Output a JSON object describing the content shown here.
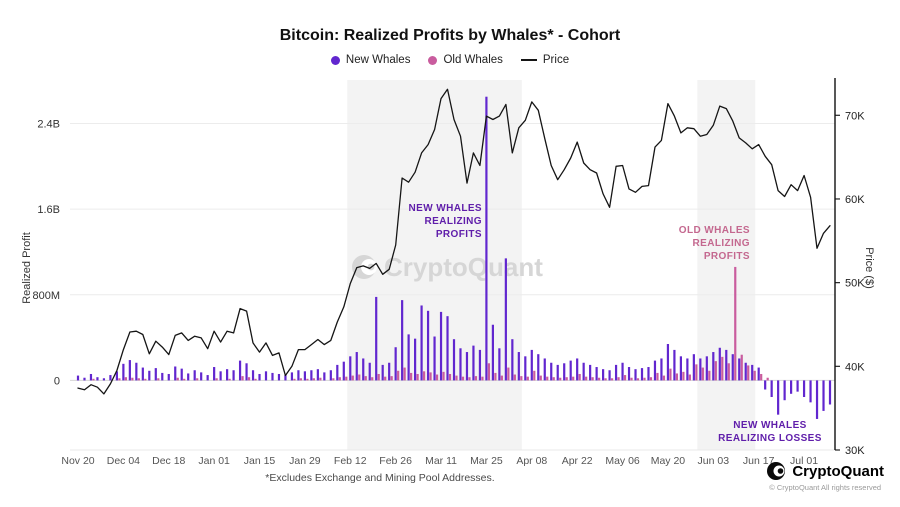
{
  "footer": {
    "brand": "CryptoQuant",
    "copyright": "© CryptoQuant All rights reserved"
  },
  "chart_data": {
    "type": "bar+line",
    "title": "Bitcoin: Realized Profits by Whales* - Cohort",
    "footnote": "*Excludes Exchange and Mining Pool Addresses.",
    "watermark": "CryptoQuant",
    "legend": [
      {
        "label": "New Whales",
        "color": "#6126cf",
        "marker": "dot"
      },
      {
        "label": "Old Whales",
        "color": "#c95c9e",
        "marker": "dot"
      },
      {
        "label": "Price",
        "color": "#151515",
        "marker": "line"
      }
    ],
    "ylabel_left": "Realized Profit",
    "ylabel_right": "Price ($)",
    "ylim_left_M": [
      -650,
      2750
    ],
    "ylim_right_k": [
      30,
      73.5
    ],
    "yticks_left": [
      {
        "value_M": 0,
        "label": "0"
      },
      {
        "value_M": 800,
        "label": "800M"
      },
      {
        "value_M": 1600,
        "label": "1.6B"
      },
      {
        "value_M": 2400,
        "label": "2.4B"
      }
    ],
    "yticks_right": [
      {
        "value_k": 30,
        "label": "30K"
      },
      {
        "value_k": 40,
        "label": "40K"
      },
      {
        "value_k": 50,
        "label": "50K"
      },
      {
        "value_k": 60,
        "label": "60K"
      },
      {
        "value_k": 70,
        "label": "70K"
      }
    ],
    "x_start_date": "Nov 20",
    "x_step_days": 2,
    "xticks": [
      {
        "label": "Nov 20",
        "index": 0
      },
      {
        "label": "Dec 04",
        "index": 7
      },
      {
        "label": "Dec 18",
        "index": 14
      },
      {
        "label": "Jan 01",
        "index": 21
      },
      {
        "label": "Jan 15",
        "index": 28
      },
      {
        "label": "Jan 29",
        "index": 35
      },
      {
        "label": "Feb 12",
        "index": 42
      },
      {
        "label": "Feb 26",
        "index": 49
      },
      {
        "label": "Mar 11",
        "index": 56
      },
      {
        "label": "Mar 25",
        "index": 63
      },
      {
        "label": "Apr 08",
        "index": 70
      },
      {
        "label": "Apr 22",
        "index": 77
      },
      {
        "label": "May 06",
        "index": 84
      },
      {
        "label": "May 20",
        "index": 91
      },
      {
        "label": "Jun 03",
        "index": 98
      },
      {
        "label": "Jun 17",
        "index": 105
      },
      {
        "label": "Jul 01",
        "index": 112
      }
    ],
    "bands_index_ranges": [
      [
        42,
        68
      ],
      [
        96,
        104
      ]
    ],
    "series": {
      "price_usd_k": [
        37.4,
        37.2,
        37.8,
        37.5,
        36.7,
        37.9,
        39.5,
        42.0,
        44.1,
        44.2,
        43.8,
        41.5,
        43.0,
        42.3,
        41.4,
        43.7,
        44.0,
        43.1,
        43.6,
        43.4,
        42.1,
        44.2,
        42.9,
        44.2,
        44.0,
        46.9,
        46.6,
        42.8,
        41.7,
        42.8,
        41.3,
        41.6,
        38.9,
        40.0,
        42.0,
        42.0,
        42.6,
        43.2,
        42.6,
        43.1,
        45.3,
        47.1,
        49.9,
        51.8,
        52.0,
        51.7,
        52.3,
        51.0,
        51.6,
        54.5,
        62.5,
        62.0,
        63.2,
        65.5,
        66.5,
        68.3,
        72.0,
        73.1,
        69.5,
        67.5,
        61.9,
        65.5,
        64.0,
        69.9,
        69.5,
        69.9,
        71.3,
        65.5,
        68.5,
        69.4,
        71.6,
        70.6,
        67.2,
        64.0,
        62.3,
        63.5,
        64.9,
        66.8,
        64.3,
        63.5,
        63.1,
        60.6,
        59.0,
        63.9,
        64.0,
        61.2,
        60.8,
        61.5,
        61.6,
        66.2,
        67.0,
        71.4,
        69.9,
        67.9,
        68.5,
        68.4,
        67.5,
        67.7,
        68.8,
        71.1,
        70.8,
        69.3,
        67.3,
        66.7,
        66.0,
        66.5,
        65.1,
        64.1,
        61.0,
        60.3,
        61.7,
        61.0,
        62.8,
        60.2,
        54.1,
        55.9,
        56.8
      ],
      "new_whales_realized_profit_usd_M": [
        45,
        25,
        60,
        30,
        20,
        50,
        85,
        155,
        190,
        165,
        120,
        90,
        115,
        70,
        60,
        130,
        110,
        65,
        95,
        75,
        50,
        125,
        85,
        105,
        95,
        185,
        160,
        95,
        60,
        85,
        70,
        60,
        50,
        75,
        95,
        85,
        95,
        105,
        75,
        95,
        145,
        175,
        225,
        265,
        205,
        165,
        780,
        145,
        165,
        310,
        750,
        430,
        390,
        700,
        650,
        410,
        640,
        600,
        385,
        300,
        265,
        325,
        285,
        2650,
        520,
        300,
        1140,
        385,
        265,
        225,
        285,
        245,
        205,
        165,
        145,
        160,
        185,
        205,
        165,
        145,
        125,
        105,
        95,
        145,
        165,
        125,
        105,
        115,
        125,
        185,
        205,
        340,
        285,
        225,
        205,
        245,
        205,
        225,
        265,
        305,
        285,
        245,
        205,
        165,
        145,
        120,
        -85,
        -155,
        -320,
        -185,
        -125,
        -105,
        -155,
        -205,
        -360,
        -285,
        -225
      ],
      "old_whales_realized_profit_usd_M": [
        0,
        0,
        15,
        0,
        0,
        0,
        20,
        30,
        25,
        20,
        15,
        0,
        20,
        0,
        0,
        25,
        15,
        0,
        20,
        0,
        0,
        20,
        0,
        15,
        0,
        40,
        30,
        15,
        0,
        0,
        0,
        0,
        0,
        15,
        20,
        15,
        20,
        25,
        0,
        20,
        30,
        35,
        45,
        55,
        40,
        30,
        60,
        35,
        40,
        90,
        120,
        70,
        60,
        85,
        75,
        55,
        80,
        60,
        45,
        35,
        30,
        40,
        35,
        160,
        70,
        45,
        120,
        55,
        40,
        35,
        90,
        45,
        35,
        30,
        25,
        30,
        35,
        60,
        35,
        30,
        25,
        20,
        20,
        30,
        50,
        25,
        20,
        25,
        30,
        70,
        45,
        110,
        65,
        80,
        55,
        150,
        120,
        90,
        180,
        220,
        160,
        1060,
        240,
        140,
        90,
        60,
        25,
        0,
        0,
        0,
        0,
        0,
        0,
        0,
        0,
        0,
        0
      ]
    },
    "annotations": {
      "new_whales_profits": {
        "line1": "NEW  WHALES",
        "line2": "REALIZING",
        "line3": "PROFITS"
      },
      "old_whales_profits": {
        "line1": "OLD  WHALES",
        "line2": "REALIZING",
        "line3": "PROFITS"
      },
      "new_whales_losses": {
        "line1": "NEW WHALES",
        "line2": "REALIZING LOSSES"
      }
    },
    "colors": {
      "new_whales": "#6126cf",
      "old_whales": "#c95c9e",
      "price": "#151515",
      "band": "#f3f3f3",
      "grid": "#ececec",
      "zero_line": "#d6d6d6",
      "annotation_purple": "#5f1daa",
      "annotation_pink": "#c4688f",
      "watermark": "#d6d6d6"
    },
    "legend_position": "top-center",
    "grid": "horizontal-only"
  }
}
